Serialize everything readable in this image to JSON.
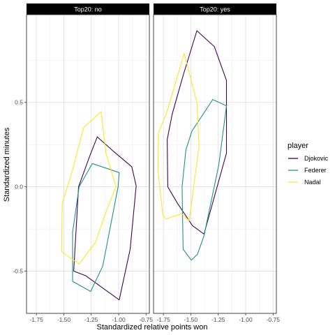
{
  "chart_data": {
    "type": "polygon-hull",
    "xlabel": "Standardized relative points won",
    "ylabel": "Standardized minutes",
    "xlim": [
      -1.84,
      -0.72
    ],
    "ylim": [
      -0.75,
      1.02
    ],
    "x_ticks": [
      -1.75,
      -1.5,
      -1.25,
      -1.0,
      -0.75
    ],
    "x_tick_labels": [
      "-1.75",
      "-1.50",
      "-1.25",
      "-1.00",
      "-0.75"
    ],
    "y_ticks": [
      -0.5,
      0.0,
      0.5
    ],
    "y_tick_labels": [
      "-0.5",
      "0.0",
      "0.5"
    ],
    "grid": true,
    "legend": {
      "title": "player",
      "placement": "right",
      "entries": [
        {
          "label": "Djokovic",
          "color": "#440154"
        },
        {
          "label": "Federer",
          "color": "#21908C"
        },
        {
          "label": "Nadal",
          "color": "#FDE725"
        }
      ]
    },
    "panels": [
      {
        "strip": "Top20: no",
        "series": [
          {
            "name": "Djokovic",
            "color": "#440154",
            "points": [
              [
                -1.195,
                0.296
              ],
              [
                -1.045,
                0.209
              ],
              [
                -0.88,
                0.118
              ],
              [
                -0.84,
                0.005
              ],
              [
                -0.895,
                -0.37
              ],
              [
                -0.995,
                -0.67
              ],
              [
                -1.3,
                -0.527
              ],
              [
                -1.41,
                -0.5
              ],
              [
                -1.365,
                0.0
              ],
              [
                -1.265,
                0.18
              ]
            ]
          },
          {
            "name": "Federer",
            "color": "#21908C",
            "points": [
              [
                -1.24,
                0.138
              ],
              [
                -0.995,
                0.084
              ],
              [
                -1.005,
                0.0
              ],
              [
                -1.145,
                -0.47
              ],
              [
                -1.255,
                -0.62
              ],
              [
                -1.42,
                -0.56
              ],
              [
                -1.42,
                -0.27
              ],
              [
                -1.36,
                0.0
              ]
            ]
          },
          {
            "name": "Nadal",
            "color": "#FDE725",
            "points": [
              [
                -1.16,
                0.445
              ],
              [
                -1.115,
                0.198
              ],
              [
                -1.025,
                0.0
              ],
              [
                -1.115,
                -0.15
              ],
              [
                -1.21,
                -0.328
              ],
              [
                -1.36,
                -0.458
              ],
              [
                -1.52,
                -0.385
              ],
              [
                -1.515,
                -0.1
              ],
              [
                -1.42,
                0.1
              ],
              [
                -1.32,
                0.35
              ]
            ]
          }
        ]
      },
      {
        "strip": "Top20: yes",
        "series": [
          {
            "name": "Djokovic",
            "color": "#440154",
            "points": [
              [
                -1.445,
                0.925
              ],
              [
                -1.285,
                0.83
              ],
              [
                -1.175,
                0.63
              ],
              [
                -1.175,
                0.2
              ],
              [
                -1.38,
                -0.28
              ],
              [
                -1.485,
                -0.23
              ],
              [
                -1.62,
                -0.1
              ],
              [
                -1.71,
                0.0
              ],
              [
                -1.715,
                0.28
              ],
              [
                -1.67,
                0.43
              ],
              [
                -1.57,
                0.66
              ]
            ]
          },
          {
            "name": "Federer",
            "color": "#21908C",
            "points": [
              [
                -1.3,
                0.517
              ],
              [
                -1.175,
                0.48
              ],
              [
                -1.245,
                0.13
              ],
              [
                -1.38,
                -0.29
              ],
              [
                -1.44,
                -0.4
              ],
              [
                -1.495,
                -0.435
              ],
              [
                -1.57,
                -0.37
              ],
              [
                -1.58,
                0.0
              ],
              [
                -1.545,
                0.22
              ],
              [
                -1.49,
                0.33
              ]
            ]
          },
          {
            "name": "Nadal",
            "color": "#FDE725",
            "points": [
              [
                -1.56,
                0.79
              ],
              [
                -1.445,
                0.5
              ],
              [
                -1.425,
                0.24
              ],
              [
                -1.515,
                -0.2
              ],
              [
                -1.585,
                -0.16
              ],
              [
                -1.725,
                -0.19
              ],
              [
                -1.755,
                -0.17
              ],
              [
                -1.8,
                0.1
              ],
              [
                -1.795,
                0.32
              ],
              [
                -1.72,
                0.44
              ]
            ]
          }
        ]
      }
    ]
  }
}
